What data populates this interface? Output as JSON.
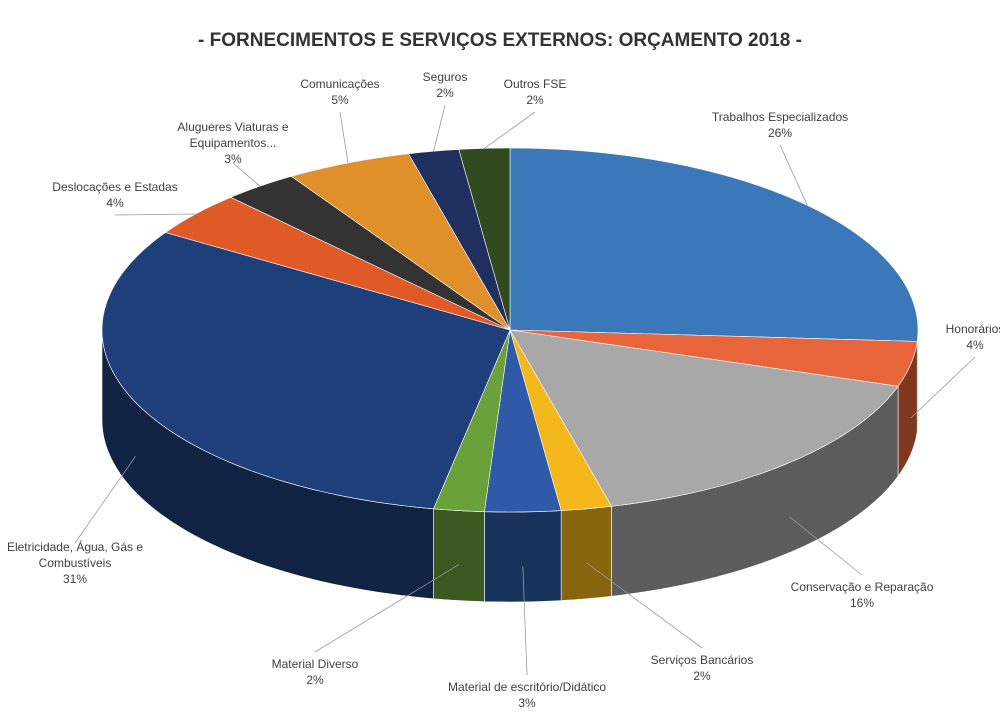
{
  "chart_data": {
    "type": "pie3d",
    "title": "- FORNECIMENTOS E SERVIÇOS EXTERNOS: ORÇAMENTO 2018 -",
    "categories": [
      "Trabalhos Especializados",
      "Honorários",
      "Conservação e Reparação",
      "Serviços Bancários",
      "Material de escritório/Didático",
      "Material Diverso",
      "Eletricidade, Água, Gás e Combustíveis",
      "Deslocações e Estadas",
      "Alugueres Viaturas e Equipamentos...",
      "Comunicações",
      "Seguros",
      "Outros FSE"
    ],
    "values": [
      26,
      4,
      16,
      2,
      3,
      2,
      31,
      4,
      3,
      5,
      2,
      2
    ],
    "value_labels": [
      "26%",
      "4%",
      "16%",
      "2%",
      "3%",
      "2%",
      "31%",
      "4%",
      "3%",
      "5%",
      "2%",
      "2%"
    ],
    "colors": [
      "#3b78b9",
      "#e8643a",
      "#a8a8a8",
      "#f5b81c",
      "#2e5aa8",
      "#6aa13a",
      "#1f3f7a",
      "#e05a28",
      "#333333",
      "#e0902a",
      "#1f3060",
      "#2f4a1f"
    ]
  }
}
